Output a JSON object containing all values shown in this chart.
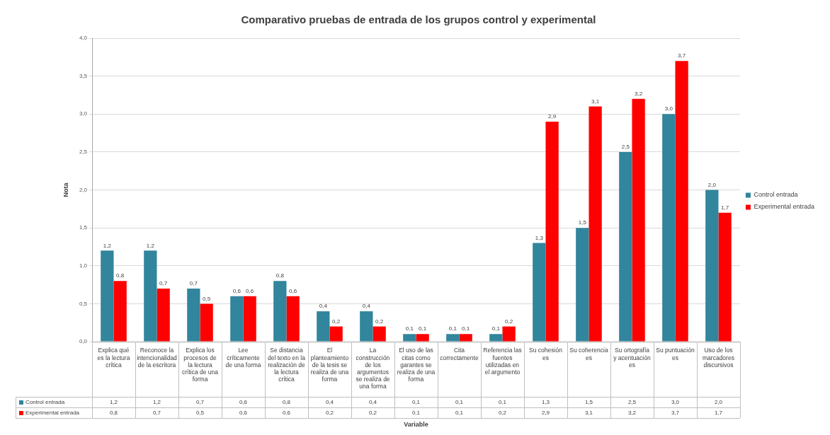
{
  "chart_data": {
    "type": "bar",
    "title": "Comparativo pruebas de entrada de los grupos control y experimental",
    "xlabel": "Variable",
    "ylabel": "Nota",
    "categories": [
      "Explica qué es la lectura crítica",
      "Reconoce la intencionalidad de la escritora",
      "Explica los procesos de la lectura crítica de una forma",
      "Lee críticamente de una forma",
      "Se distancia del texto en la realización de la lectura crítica",
      "El planteamiento de la tesis se realiza de una forma",
      "La construcción de los argumentos se realiza de una forma",
      "El uso de las citas como garantes se realiza de una forma",
      "Cita correctamente",
      "Referencia las fuentes utilizadas en el argumento",
      "Su cohesión es",
      "Su coherencia es",
      "Su ortografía y acentuación es",
      "Su puntuación es",
      "Uso de los marcadores discursivos"
    ],
    "series": [
      {
        "name": "Control entrada",
        "color": "#31859c",
        "values": [
          1.2,
          1.2,
          0.7,
          0.6,
          0.8,
          0.4,
          0.4,
          0.1,
          0.1,
          0.1,
          1.3,
          1.5,
          2.5,
          3.0,
          2.0
        ],
        "value_labels": [
          "1,2",
          "1,2",
          "0,7",
          "0,6",
          "0,8",
          "0,4",
          "0,4",
          "0,1",
          "0,1",
          "0,1",
          "1,3",
          "1,5",
          "2,5",
          "3,0",
          "2,0"
        ]
      },
      {
        "name": "Experimental entrada",
        "color": "#ff0000",
        "values": [
          0.8,
          0.7,
          0.5,
          0.6,
          0.6,
          0.2,
          0.2,
          0.1,
          0.1,
          0.2,
          2.9,
          3.1,
          3.2,
          3.7,
          1.7
        ],
        "value_labels": [
          "0,8",
          "0,7",
          "0,5",
          "0,6",
          "0,6",
          "0,2",
          "0,2",
          "0,1",
          "0,1",
          "0,2",
          "2,9",
          "3,1",
          "3,2",
          "3,7",
          "1,7"
        ]
      }
    ],
    "ylim": [
      0,
      4
    ],
    "yticks": [
      {
        "value": 0,
        "label": "0,0"
      },
      {
        "value": 0.5,
        "label": "0,5"
      },
      {
        "value": 1,
        "label": "1,0"
      },
      {
        "value": 1.5,
        "label": "1,5"
      },
      {
        "value": 2,
        "label": "2,0"
      },
      {
        "value": 2.5,
        "label": "2,5"
      },
      {
        "value": 3,
        "label": "3,0"
      },
      {
        "value": 3.5,
        "label": "3,5"
      },
      {
        "value": 4,
        "label": "4,0"
      }
    ],
    "grid": "y",
    "legend": "right"
  }
}
